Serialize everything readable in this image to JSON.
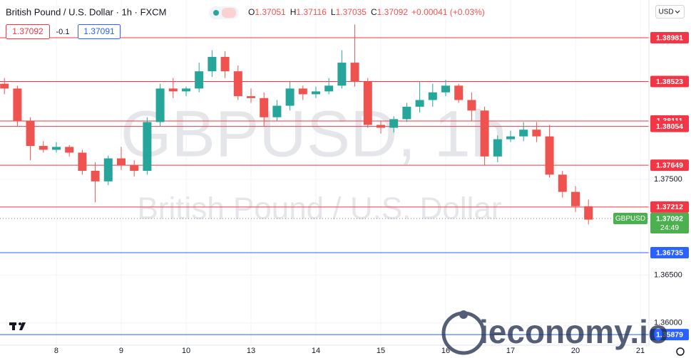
{
  "header": {
    "symbol": "British Pound / U.S. Dollar · 1h · FXCM",
    "ohlc": [
      {
        "key": "O",
        "value": "1.37051"
      },
      {
        "key": "H",
        "value": "1.37116"
      },
      {
        "key": "L",
        "value": "1.37035"
      },
      {
        "key": "C",
        "value": "1.37092"
      }
    ],
    "change": "+0.00041 (+0.03%)",
    "bid": "1.37092",
    "spread": "-0.1",
    "ask": "1.37091",
    "currency": "USD",
    "watermark": "GBPUSD, 1h",
    "watermark_sub": "British Pound / U.S. Dollar",
    "logo": "ieconomy.io"
  },
  "chart_data": {
    "type": "candlestick",
    "x": [
      -0.8,
      -0.6,
      -0.4,
      -0.2,
      0,
      0.2,
      0.4,
      0.6,
      0.8,
      1,
      1.2,
      1.4,
      1.6,
      1.8,
      2,
      2.2,
      2.4,
      2.6,
      2.8,
      3,
      3.2,
      3.4,
      3.6,
      3.8,
      4,
      4.2,
      4.4,
      4.6,
      4.8,
      5,
      5.2,
      5.4,
      5.6,
      5.8,
      6,
      6.2,
      6.4,
      6.6,
      6.8,
      7,
      7.2,
      7.4,
      7.6,
      7.8,
      8,
      8.2
    ],
    "open": [
      1.385,
      1.3845,
      1.3811,
      1.3785,
      1.3781,
      1.3784,
      1.3778,
      1.3759,
      1.3748,
      1.3772,
      1.3765,
      1.3759,
      1.381,
      1.3845,
      1.3842,
      1.3845,
      1.3863,
      1.3878,
      1.3863,
      1.3837,
      1.3835,
      1.3815,
      1.3827,
      1.3845,
      1.3839,
      1.3842,
      1.3848,
      1.3872,
      1.3852,
      1.3807,
      1.3804,
      1.3813,
      1.3826,
      1.3833,
      1.3841,
      1.3848,
      1.3833,
      1.3822,
      1.3774,
      1.3792,
      1.3795,
      1.3802,
      1.3795,
      1.3755,
      1.3737,
      1.3722
    ],
    "high": [
      1.3856,
      1.3848,
      1.3815,
      1.379,
      1.3789,
      1.3786,
      1.3781,
      1.3768,
      1.3775,
      1.3784,
      1.377,
      1.3815,
      1.385,
      1.3856,
      1.3847,
      1.3872,
      1.3885,
      1.3884,
      1.3869,
      1.3845,
      1.3841,
      1.3833,
      1.3852,
      1.3848,
      1.3847,
      1.3856,
      1.3885,
      1.3912,
      1.3856,
      1.3811,
      1.3816,
      1.383,
      1.3852,
      1.385,
      1.3854,
      1.385,
      1.3841,
      1.3826,
      1.3796,
      1.3801,
      1.381,
      1.381,
      1.3807,
      1.3759,
      1.3743,
      1.3729
    ],
    "low": [
      1.3839,
      1.3805,
      1.377,
      1.3778,
      1.3778,
      1.3774,
      1.3755,
      1.3726,
      1.3744,
      1.376,
      1.3753,
      1.3755,
      1.3805,
      1.3835,
      1.3837,
      1.3841,
      1.3857,
      1.3856,
      1.3833,
      1.383,
      1.3805,
      1.3811,
      1.3822,
      1.3833,
      1.3835,
      1.3839,
      1.3845,
      1.3847,
      1.3804,
      1.3798,
      1.3799,
      1.381,
      1.382,
      1.3826,
      1.3837,
      1.383,
      1.3811,
      1.3765,
      1.3768,
      1.3789,
      1.379,
      1.3789,
      1.3752,
      1.3731,
      1.3716,
      1.3703
    ],
    "close": [
      1.3845,
      1.3811,
      1.3785,
      1.3781,
      1.3784,
      1.3778,
      1.3759,
      1.3748,
      1.3772,
      1.3765,
      1.3759,
      1.381,
      1.3845,
      1.3842,
      1.3845,
      1.3863,
      1.3878,
      1.3863,
      1.3837,
      1.3835,
      1.3815,
      1.3827,
      1.3845,
      1.3839,
      1.3842,
      1.3848,
      1.3872,
      1.3852,
      1.3807,
      1.3804,
      1.3813,
      1.3826,
      1.3833,
      1.3841,
      1.3848,
      1.3833,
      1.3822,
      1.3774,
      1.3792,
      1.3795,
      1.3802,
      1.3795,
      1.3755,
      1.3737,
      1.3722,
      1.3708
    ],
    "up_color": "#26a69a",
    "down_color": "#ef5350",
    "xlim": [
      -0.868,
      9.132
    ],
    "xticks": [
      {
        "value": 0,
        "label": "8"
      },
      {
        "value": 1,
        "label": "9"
      },
      {
        "value": 2,
        "label": "10"
      },
      {
        "value": 3,
        "label": "13"
      },
      {
        "value": 4,
        "label": "14"
      },
      {
        "value": 5,
        "label": "15"
      },
      {
        "value": 6,
        "label": "16"
      },
      {
        "value": 7,
        "label": "17"
      },
      {
        "value": 8,
        "label": "20"
      },
      {
        "value": 9,
        "label": "21"
      }
    ],
    "ylim": [
      1.35768,
      1.39375
    ],
    "yticks": [
      {
        "value": 1.375,
        "label": "1.37500"
      },
      {
        "value": 1.365,
        "label": "1.36500"
      },
      {
        "value": 1.36,
        "label": "1.36000"
      }
    ],
    "grid": true,
    "hlines": [
      {
        "value": 1.38981,
        "color": "#f23645"
      },
      {
        "value": 1.38523,
        "color": "#f23645"
      },
      {
        "value": 1.38111,
        "color": "#f23645"
      },
      {
        "value": 1.38054,
        "color": "#f23645"
      },
      {
        "value": 1.37649,
        "color": "#f23645"
      },
      {
        "value": 1.37212,
        "color": "#f23645"
      },
      {
        "value": 1.36735,
        "color": "#2962ff"
      },
      {
        "value": 1.35879,
        "color": "#2962ff"
      }
    ],
    "current": {
      "name": "GBPUSD",
      "value": 1.37092,
      "countdown": "24:49",
      "color": "#4caf50"
    }
  }
}
